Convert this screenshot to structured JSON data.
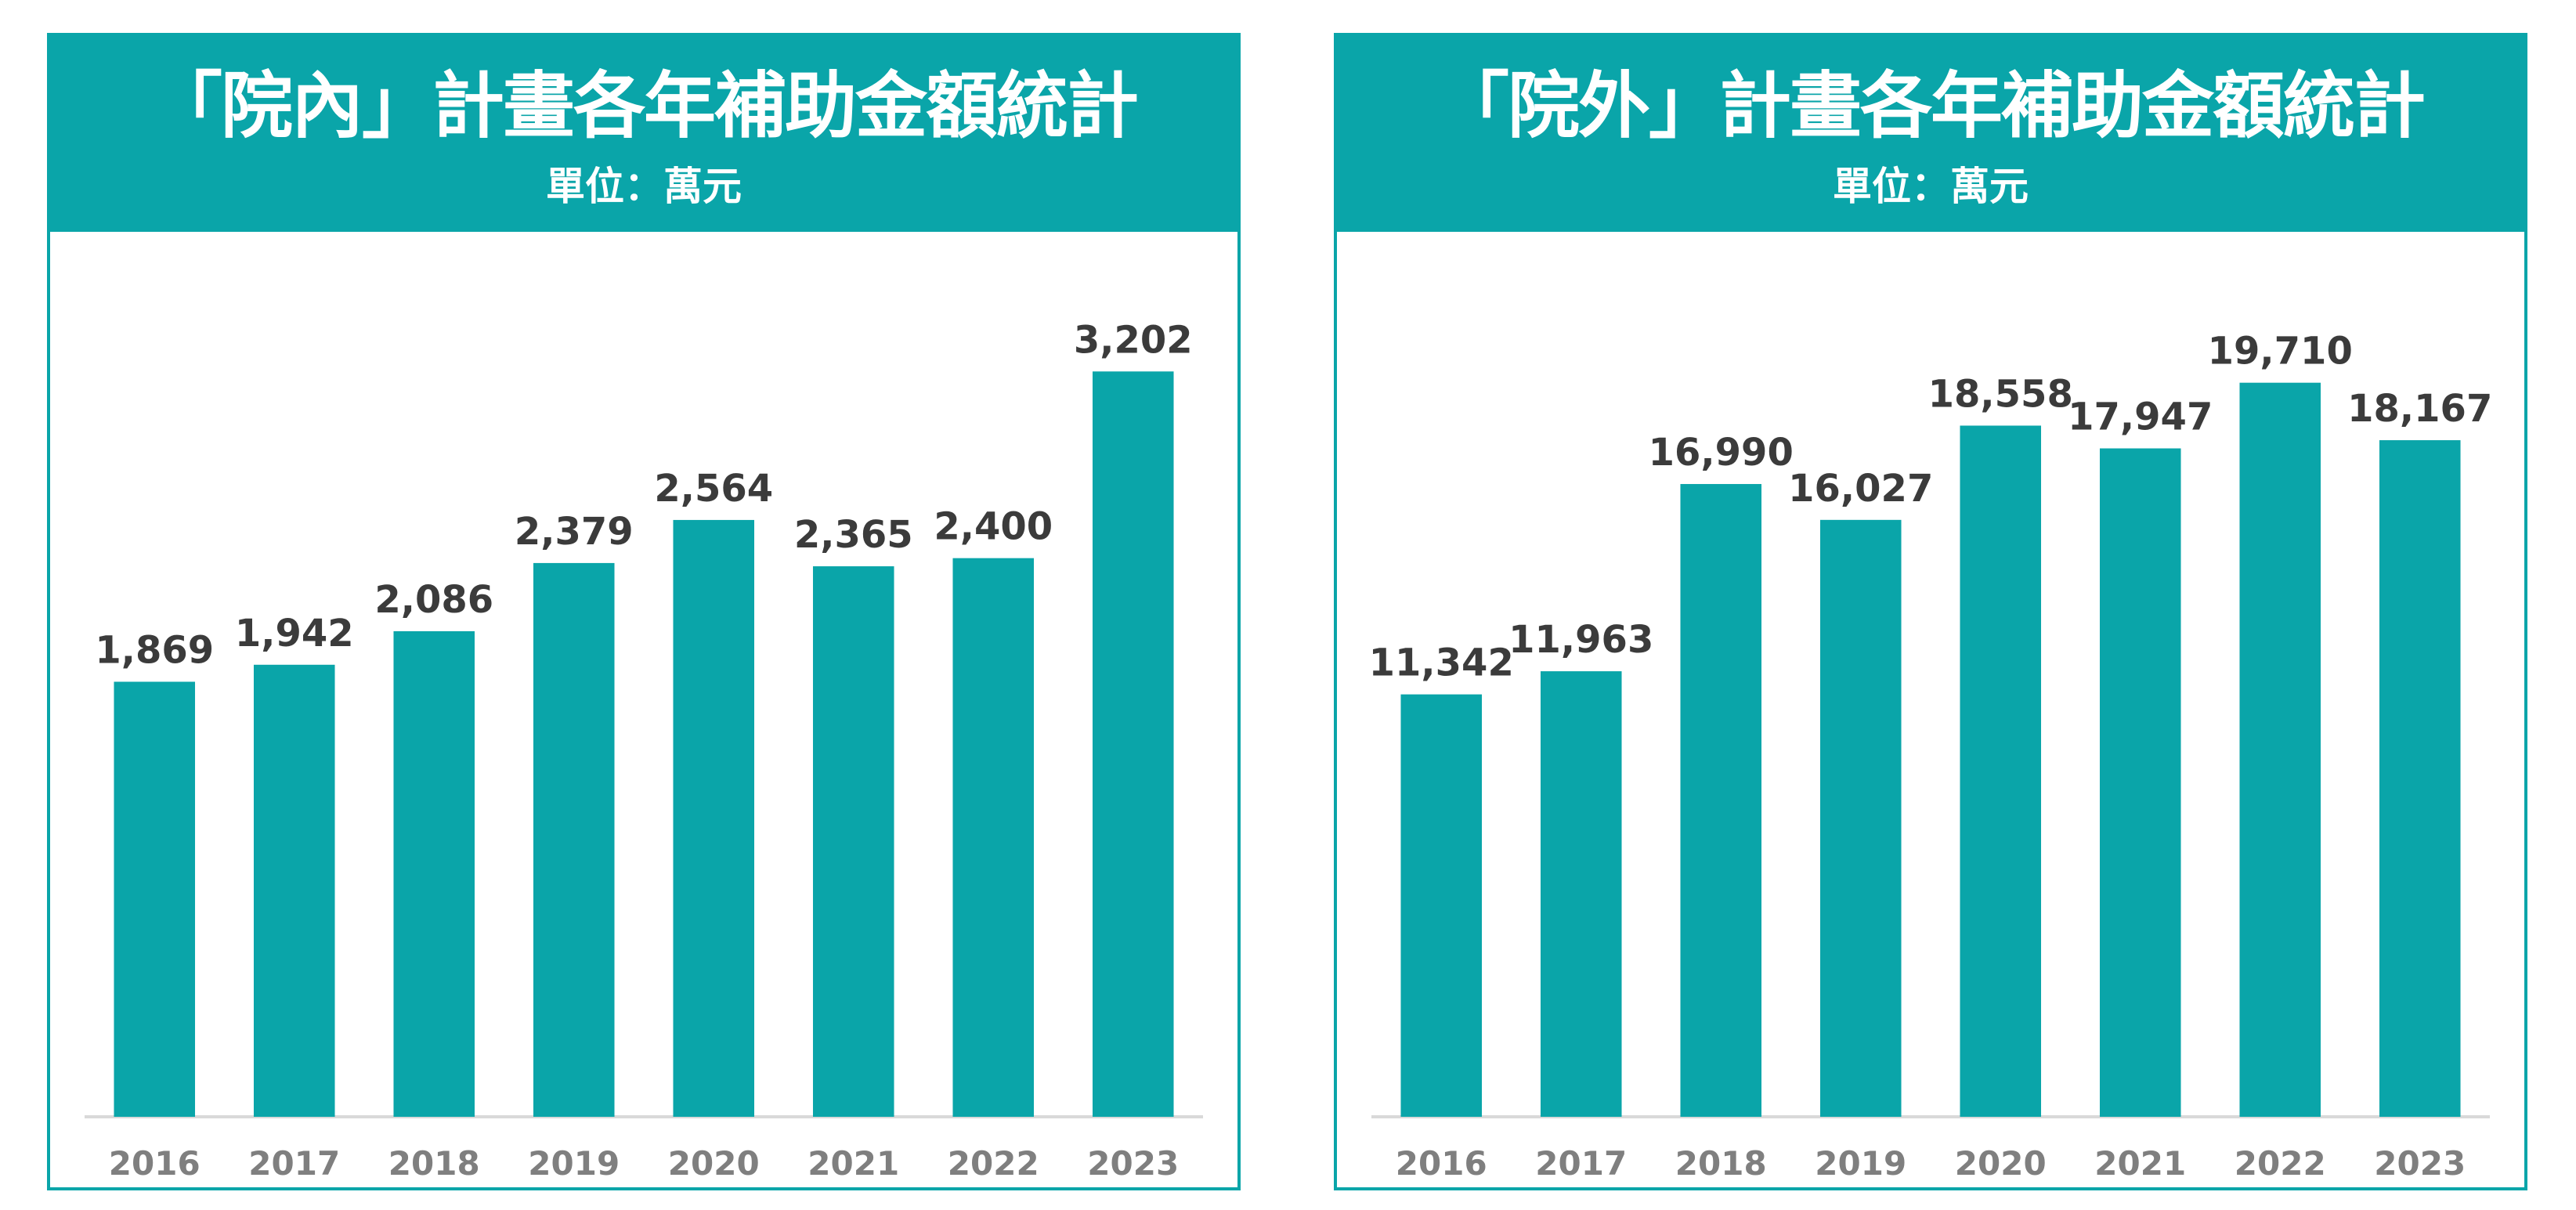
{
  "colors": {
    "accent": "#0aa5a9",
    "label": "#3b3b3b",
    "tick": "#7f7f7f",
    "axis": "#d9d9d9"
  },
  "panels": [
    {
      "title": "「院內」計畫各年補助金額統計",
      "subtitle": "單位：萬元"
    },
    {
      "title": "「院外」計畫各年補助金額統計",
      "subtitle": "單位：萬元"
    }
  ],
  "chart_data": [
    {
      "type": "bar",
      "title": "「院內」計畫各年補助金額統計",
      "subtitle": "單位：萬元",
      "categories": [
        "2016",
        "2017",
        "2018",
        "2019",
        "2020",
        "2021",
        "2022",
        "2023"
      ],
      "values": [
        1869,
        1942,
        2086,
        2379,
        2564,
        2365,
        2400,
        3202
      ],
      "value_labels": [
        "1,869",
        "1,942",
        "2,086",
        "2,379",
        "2,564",
        "2,365",
        "2,400",
        "3,202"
      ],
      "xlabel": "",
      "ylabel": "",
      "ylim": [
        0,
        3600
      ],
      "grid": false,
      "legend": "none"
    },
    {
      "type": "bar",
      "title": "「院外」計畫各年補助金額統計",
      "subtitle": "單位：萬元",
      "categories": [
        "2016",
        "2017",
        "2018",
        "2019",
        "2020",
        "2021",
        "2022",
        "2023"
      ],
      "values": [
        11342,
        11963,
        16990,
        16027,
        18558,
        17947,
        19710,
        18167
      ],
      "value_labels": [
        "11,342",
        "11,963",
        "16,990",
        "16,027",
        "18,558",
        "17,947",
        "19,710",
        "18,167"
      ],
      "xlabel": "",
      "ylabel": "",
      "ylim": [
        0,
        22500
      ],
      "grid": false,
      "legend": "none"
    }
  ]
}
